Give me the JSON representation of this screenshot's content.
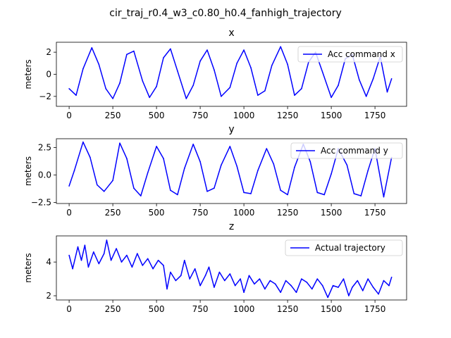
{
  "figure": {
    "suptitle": "cir_traj_r0.4_w3_c0.80_h0.4_fanhigh_trajectory"
  },
  "colors": {
    "series": "#0000ff",
    "axes": "#000000",
    "legend_border": "#cccccc",
    "background": "#ffffff"
  },
  "chart_data": [
    {
      "type": "line",
      "title": "x",
      "xlabel": "",
      "ylabel": "meters",
      "xlim": [
        -73,
        1931
      ],
      "ylim": [
        -2.9,
        2.9
      ],
      "xticks": [
        0,
        250,
        500,
        750,
        1000,
        1250,
        1500,
        1750
      ],
      "xtick_labels": [
        "0",
        "250",
        "500",
        "750",
        "1000",
        "1250",
        "1500",
        "1750"
      ],
      "yticks": [
        -2,
        0,
        2
      ],
      "ytick_labels": [
        "−2",
        "0",
        "2"
      ],
      "legend": {
        "placement": "upper right",
        "entries": [
          "Acc command x"
        ]
      },
      "series": [
        {
          "name": "Acc command x",
          "color": "#0000ff",
          "x": [
            0,
            40,
            80,
            130,
            170,
            210,
            250,
            290,
            330,
            370,
            420,
            460,
            500,
            540,
            580,
            620,
            670,
            710,
            750,
            790,
            830,
            870,
            920,
            960,
            1000,
            1040,
            1080,
            1120,
            1160,
            1210,
            1250,
            1290,
            1330,
            1370,
            1410,
            1450,
            1500,
            1540,
            1580,
            1620,
            1660,
            1700,
            1740,
            1780,
            1820,
            1845
          ],
          "y": [
            -1.3,
            -1.9,
            0.5,
            2.4,
            0.9,
            -1.3,
            -2.2,
            -0.8,
            1.8,
            2.1,
            -0.6,
            -2.1,
            -1.1,
            1.5,
            2.3,
            0.3,
            -2.2,
            -1.0,
            1.2,
            2.2,
            0.4,
            -2.0,
            -1.2,
            1.0,
            2.2,
            0.6,
            -1.9,
            -1.5,
            0.8,
            2.5,
            0.9,
            -1.9,
            -1.3,
            1.1,
            2.0,
            0.2,
            -2.1,
            -1.0,
            1.4,
            1.8,
            -0.5,
            -2.0,
            -0.4,
            1.6,
            -1.6,
            -0.4
          ]
        }
      ]
    },
    {
      "type": "line",
      "title": "y",
      "xlabel": "",
      "ylabel": "meters",
      "xlim": [
        -73,
        1931
      ],
      "ylim": [
        -2.6,
        3.3
      ],
      "xticks": [
        0,
        250,
        500,
        750,
        1000,
        1250,
        1500,
        1750
      ],
      "xtick_labels": [
        "0",
        "250",
        "500",
        "750",
        "1000",
        "1250",
        "1500",
        "1750"
      ],
      "yticks": [
        -2.5,
        0.0,
        2.5
      ],
      "ytick_labels": [
        "−2.5",
        "0.0",
        "2.5"
      ],
      "legend": {
        "placement": "upper right",
        "entries": [
          "Acc command y"
        ]
      },
      "series": [
        {
          "name": "Acc command y",
          "color": "#0000ff",
          "x": [
            0,
            30,
            80,
            120,
            160,
            200,
            250,
            290,
            330,
            370,
            410,
            450,
            500,
            540,
            580,
            620,
            660,
            710,
            750,
            790,
            830,
            870,
            920,
            960,
            1000,
            1040,
            1080,
            1130,
            1170,
            1210,
            1250,
            1290,
            1340,
            1380,
            1420,
            1460,
            1500,
            1540,
            1590,
            1630,
            1670,
            1710,
            1750,
            1800,
            1845
          ],
          "y": [
            -1.0,
            0.4,
            3.0,
            1.6,
            -0.9,
            -1.5,
            -0.5,
            2.9,
            1.5,
            -1.2,
            -1.9,
            0.2,
            2.6,
            1.5,
            -1.4,
            -1.8,
            0.6,
            2.8,
            1.2,
            -1.5,
            -1.2,
            0.9,
            2.6,
            0.8,
            -1.6,
            -1.7,
            0.4,
            2.4,
            1.0,
            -1.4,
            -1.8,
            0.7,
            2.8,
            1.2,
            -1.6,
            -1.8,
            0.1,
            2.4,
            0.9,
            -1.7,
            -1.9,
            0.4,
            2.4,
            -2.0,
            1.6
          ]
        }
      ]
    },
    {
      "type": "line",
      "title": "z",
      "xlabel": "",
      "ylabel": "meters",
      "xlim": [
        -73,
        1931
      ],
      "ylim": [
        1.75,
        5.55
      ],
      "xticks": [
        0,
        250,
        500,
        750,
        1000,
        1250,
        1500,
        1750
      ],
      "xtick_labels": [
        "0",
        "250",
        "500",
        "750",
        "1000",
        "1250",
        "1500",
        "1750"
      ],
      "yticks": [
        2,
        4
      ],
      "ytick_labels": [
        "2",
        "4"
      ],
      "legend": {
        "placement": "upper right",
        "entries": [
          "Actual trajectory"
        ]
      },
      "series": [
        {
          "name": "Actual trajectory",
          "color": "#0000ff",
          "x": [
            0,
            20,
            50,
            70,
            90,
            110,
            140,
            170,
            200,
            215,
            240,
            270,
            300,
            330,
            360,
            390,
            420,
            450,
            480,
            510,
            540,
            560,
            580,
            610,
            640,
            660,
            690,
            720,
            750,
            780,
            800,
            830,
            860,
            890,
            920,
            950,
            980,
            1000,
            1030,
            1060,
            1090,
            1120,
            1150,
            1180,
            1210,
            1240,
            1270,
            1300,
            1330,
            1360,
            1390,
            1420,
            1450,
            1480,
            1510,
            1540,
            1570,
            1600,
            1620,
            1650,
            1680,
            1710,
            1740,
            1770,
            1800,
            1830,
            1845
          ],
          "y": [
            4.4,
            3.6,
            4.9,
            4.1,
            5.0,
            3.7,
            4.6,
            3.9,
            4.5,
            5.3,
            4.1,
            4.8,
            4.0,
            4.4,
            3.7,
            4.5,
            3.8,
            4.2,
            3.6,
            4.1,
            3.8,
            2.4,
            3.4,
            2.9,
            3.2,
            4.1,
            3.0,
            3.6,
            2.6,
            3.2,
            3.7,
            2.5,
            3.4,
            2.9,
            3.3,
            2.6,
            3.0,
            2.2,
            3.2,
            2.7,
            3.0,
            2.4,
            2.9,
            2.7,
            2.2,
            2.9,
            2.6,
            2.2,
            3.0,
            2.8,
            2.4,
            3.0,
            2.6,
            1.9,
            2.6,
            2.5,
            3.0,
            2.0,
            2.5,
            2.9,
            2.3,
            3.0,
            2.5,
            2.1,
            2.9,
            2.6,
            3.1
          ]
        }
      ]
    }
  ]
}
